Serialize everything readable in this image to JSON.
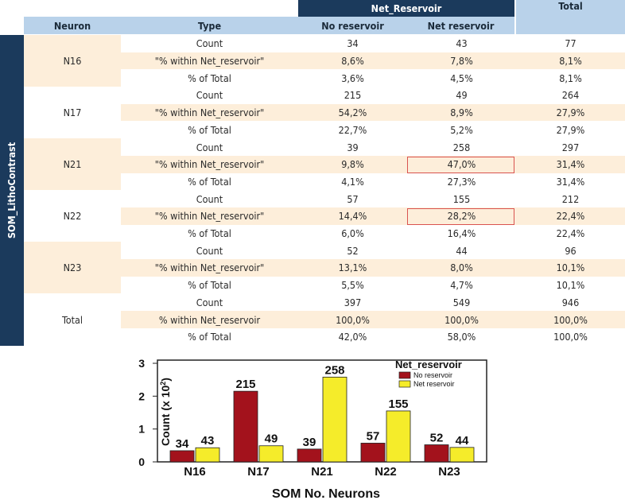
{
  "table": {
    "group_header": "Net_Reservoir",
    "total_header": "Total",
    "col_neuron": "Neuron",
    "col_type": "Type",
    "col_no": "No reservoir",
    "col_net": "Net reservoir",
    "side_label": "SOM_LithoContrast",
    "groups": [
      {
        "name": "N16",
        "rows": [
          {
            "type": "Count",
            "no": "34",
            "net": "43",
            "total": "77"
          },
          {
            "type": "\"% within Net_reservoir\"",
            "no": "8,6%",
            "net": "7,8%",
            "total": "8,1%"
          },
          {
            "type": "% of Total",
            "no": "3,6%",
            "net": "4,5%",
            "total": "8,1%"
          }
        ]
      },
      {
        "name": "N17",
        "rows": [
          {
            "type": "Count",
            "no": "215",
            "net": "49",
            "total": "264"
          },
          {
            "type": "\"% within Net_reservoir\"",
            "no": "54,2%",
            "net": "8,9%",
            "total": "27,9%"
          },
          {
            "type": "% of Total",
            "no": "22,7%",
            "net": "5,2%",
            "total": "27,9%"
          }
        ]
      },
      {
        "name": "N21",
        "rows": [
          {
            "type": "Count",
            "no": "39",
            "net": "258",
            "total": "297"
          },
          {
            "type": "\"% within Net_reservoir\"",
            "no": "9,8%",
            "net": "47,0%",
            "total": "31,4%"
          },
          {
            "type": "% of Total",
            "no": "4,1%",
            "net": "27,3%",
            "total": "31,4%"
          }
        ]
      },
      {
        "name": "N22",
        "rows": [
          {
            "type": "Count",
            "no": "57",
            "net": "155",
            "total": "212"
          },
          {
            "type": "\"% within Net_reservoir\"",
            "no": "14,4%",
            "net": "28,2%",
            "total": "22,4%"
          },
          {
            "type": "% of Total",
            "no": "6,0%",
            "net": "16,4%",
            "total": "22,4%"
          }
        ]
      },
      {
        "name": "N23",
        "rows": [
          {
            "type": "Count",
            "no": "52",
            "net": "44",
            "total": "96"
          },
          {
            "type": "\"% within Net_reservoir\"",
            "no": "13,1%",
            "net": "8,0%",
            "total": "10,1%"
          },
          {
            "type": "% of Total",
            "no": "5,5%",
            "net": "4,7%",
            "total": "10,1%"
          }
        ]
      },
      {
        "name": "Total",
        "rows": [
          {
            "type": "Count",
            "no": "397",
            "net": "549",
            "total": "946"
          },
          {
            "type": "% within Net_reservoir",
            "no": "100,0%",
            "net": "100,0%",
            "total": "100,0%"
          },
          {
            "type": "% of Total",
            "no": "42,0%",
            "net": "58,0%",
            "total": "100,0%"
          }
        ]
      }
    ],
    "highlighted": [
      "N21",
      "N22"
    ]
  },
  "chart_data": {
    "type": "bar",
    "categories": [
      "N16",
      "N17",
      "N21",
      "N22",
      "N23"
    ],
    "series": [
      {
        "name": "No reservoir",
        "color": "#a3121c",
        "values": [
          34,
          215,
          39,
          57,
          52
        ]
      },
      {
        "name": "Net reservoir",
        "color": "#f5ec2a",
        "values": [
          43,
          49,
          258,
          155,
          44
        ]
      }
    ],
    "xlabel": "SOM No. Neurons",
    "ylabel_main": "Count (x 10",
    "ylabel_exp": "2",
    "ylabel_close": ")",
    "yticks": [
      "0",
      "1",
      "2",
      "3"
    ],
    "ylim": [
      0,
      300
    ],
    "legend_title": "Net_reservoir",
    "legend_position": "top-right",
    "grid": false
  }
}
